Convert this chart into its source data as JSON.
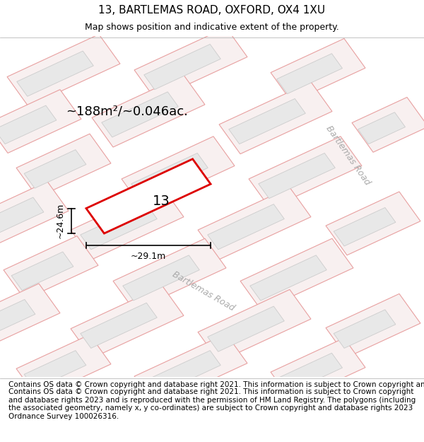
{
  "title": "13, BARTLEMAS ROAD, OXFORD, OX4 1XU",
  "subtitle": "Map shows position and indicative extent of the property.",
  "footer": "Contains OS data © Crown copyright and database right 2021. This information is subject to Crown copyright and database rights 2023 and is reproduced with the permission of HM Land Registry. The polygons (including the associated geometry, namely x, y co-ordinates) are subject to Crown copyright and database rights 2023 Ordnance Survey 100026316.",
  "area_text": "~188m²/~0.046ac.",
  "width_label": "~29.1m",
  "height_label": "~24.6m",
  "property_number": "13",
  "bg_color": "#f5f5f5",
  "map_bg": "#f0f0f0",
  "road_label": "Bartlemas Road",
  "building_fill": "#e8e8e8",
  "building_edge": "#cccccc",
  "pink_outline": "#e8a0a0",
  "red_polygon_color": "#dd0000",
  "title_fontsize": 11,
  "subtitle_fontsize": 9,
  "footer_fontsize": 7.5
}
